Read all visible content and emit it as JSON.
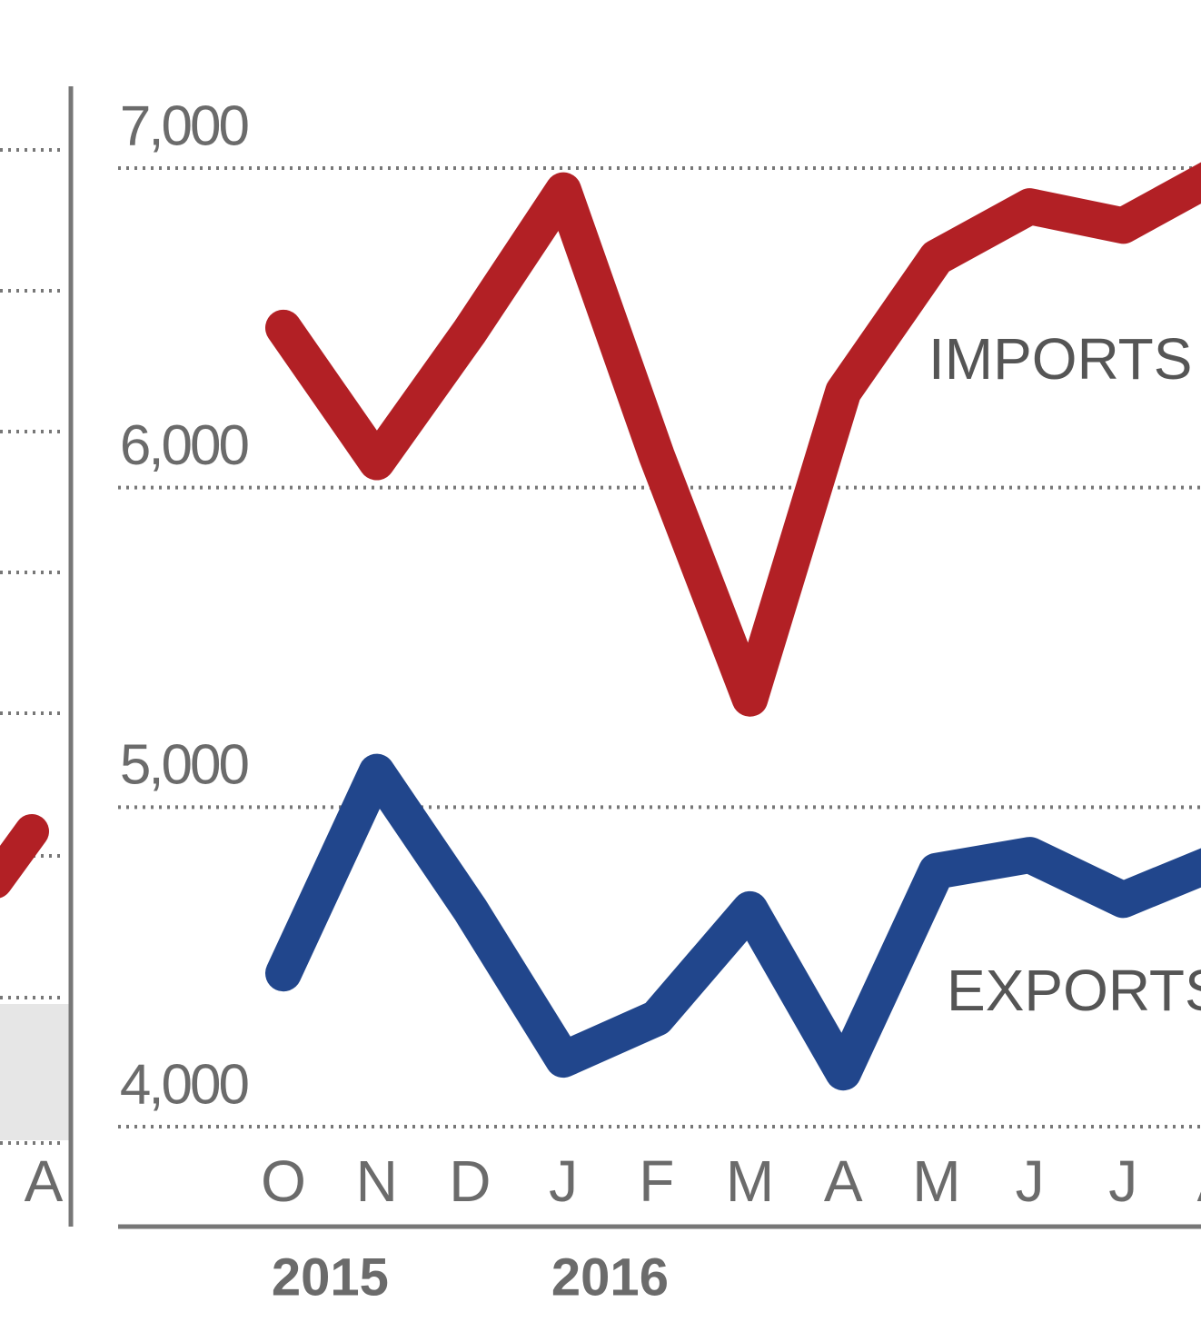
{
  "chart_data": [
    {
      "type": "line",
      "categories": [
        "A"
      ]
    },
    {
      "type": "line",
      "categories": [
        "O",
        "N",
        "D",
        "J",
        "F",
        "M",
        "A",
        "M",
        "J",
        "J",
        "A"
      ],
      "year_labels": [
        "2015",
        "2016"
      ],
      "series": [
        {
          "name": "IMPORTS",
          "color": "#b22025",
          "values": [
            6500,
            6080,
            6490,
            6930,
            6100,
            5340,
            6300,
            6720,
            6880,
            6820,
            6980
          ]
        },
        {
          "name": "EXPORTS",
          "color": "#21468c",
          "values": [
            4480,
            5110,
            4680,
            4210,
            4340,
            4680,
            4170,
            4800,
            4850,
            4710,
            4830
          ]
        }
      ],
      "ylim": [
        4000,
        7000
      ],
      "yticks": [
        {
          "value": 4000,
          "label": "4,000"
        },
        {
          "value": 5000,
          "label": "5,000"
        },
        {
          "value": 6000,
          "label": "6,000"
        },
        {
          "value": 7000,
          "label": "7,000"
        }
      ],
      "grid": true
    }
  ]
}
